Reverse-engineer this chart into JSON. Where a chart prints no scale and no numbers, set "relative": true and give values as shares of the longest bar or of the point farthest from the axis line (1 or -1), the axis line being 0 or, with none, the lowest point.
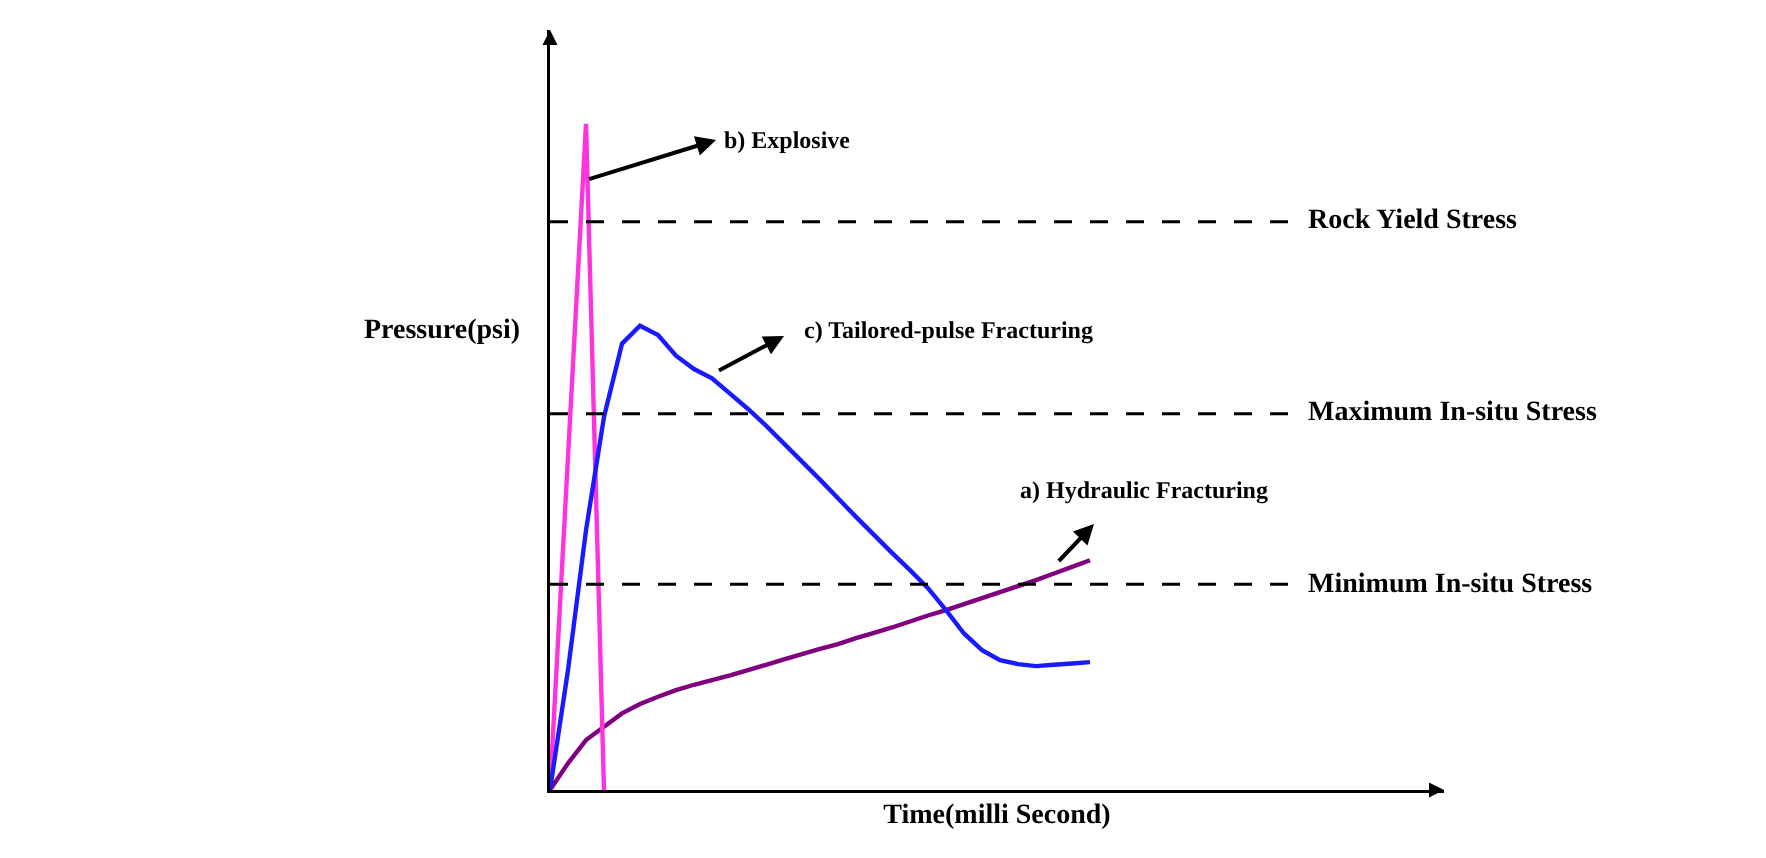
{
  "chart_data": {
    "type": "line",
    "relative": true,
    "xlabel": "Time(milli Second)",
    "ylabel": "Pressure(psi)",
    "grid": false,
    "marker": "none",
    "line_style": "solid",
    "categories": [
      null,
      null,
      null,
      null,
      null,
      null,
      null,
      null,
      null,
      null,
      null,
      null,
      null,
      null,
      null,
      null,
      null,
      null,
      null,
      null,
      null,
      null,
      null,
      null,
      null,
      null,
      null,
      null,
      null,
      null,
      null
    ],
    "series": [
      {
        "color": "#800080",
        "values": [
          0,
          0.04,
          0.075,
          0.095,
          0.115,
          0.129,
          0.14,
          0.15,
          0.158,
          0.165,
          0.172,
          0.18,
          0.188,
          0.196,
          0.204,
          0.212,
          0.219,
          0.228,
          0.236,
          0.244,
          0.253,
          0.262,
          0.27,
          0.279,
          0.288,
          0.297,
          0.306,
          0.315,
          0.325,
          0.335,
          0.345
        ]
      },
      {
        "color": "#ff33dd",
        "values": [
          0,
          0.5,
          1,
          0,
          null,
          null,
          null,
          null,
          null,
          null,
          null,
          null,
          null,
          null,
          null,
          null,
          null,
          null,
          null,
          null,
          null,
          null,
          null,
          null,
          null,
          null,
          null,
          null,
          null,
          null,
          null
        ]
      },
      {
        "color": "#1a1aff",
        "values": [
          0,
          0.18,
          0.39,
          0.56,
          0.67,
          0.697,
          0.683,
          0.652,
          0.632,
          0.618,
          0.595,
          0.572,
          0.547,
          0.52,
          0.493,
          0.466,
          0.438,
          0.41,
          0.383,
          0.356,
          0.33,
          0.303,
          0.27,
          0.235,
          0.21,
          0.195,
          0.189,
          0.186,
          0.188,
          0.19,
          0.192
        ]
      }
    ],
    "ref_lines": [
      {
        "axis": "y",
        "value": 0.853,
        "label": "Rock Yield Stress",
        "line_style": "dashed",
        "color": "#000000"
      },
      {
        "axis": "y",
        "value": 0.565,
        "label": "Maximum In-situ Stress",
        "line_style": "dashed",
        "color": "#000000"
      },
      {
        "axis": "y",
        "value": 0.309,
        "label": "Minimum In-situ Stress",
        "line_style": "dashed",
        "color": "#000000"
      }
    ],
    "annotations": [
      "a) Hydraulic Fracturing",
      "b) Explosive",
      "c) Tailored-pulse Fracturing"
    ]
  }
}
